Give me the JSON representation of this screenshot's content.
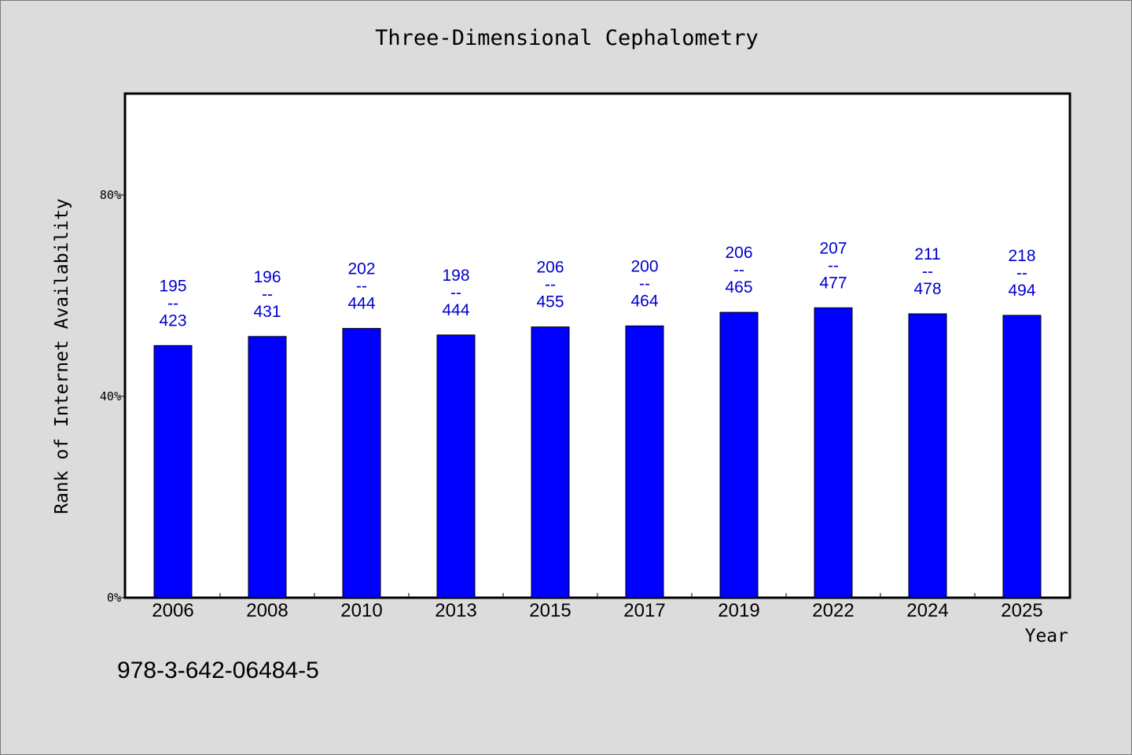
{
  "chart_data": {
    "type": "bar",
    "title": "Three-Dimensional Cephalometry",
    "xlabel": "Year",
    "ylabel": "Rank of Internet Availability",
    "ylim": [
      0,
      100
    ],
    "yticks": [
      0,
      40,
      80
    ],
    "ytick_labels": [
      "0%",
      "40%",
      "80%"
    ],
    "grid": false,
    "bar_color": "#0000ff",
    "label_color": "#0000cc",
    "categories": [
      "2006",
      "2008",
      "2010",
      "2013",
      "2015",
      "2017",
      "2019",
      "2022",
      "2024",
      "2025"
    ],
    "values": [
      50.1,
      51.9,
      53.5,
      52.2,
      53.8,
      54.0,
      56.7,
      57.6,
      56.4,
      56.1
    ],
    "data_labels": [
      {
        "top": "195",
        "sep": "--",
        "bottom": "423"
      },
      {
        "top": "196",
        "sep": "--",
        "bottom": "431"
      },
      {
        "top": "202",
        "sep": "--",
        "bottom": "444"
      },
      {
        "top": "198",
        "sep": "--",
        "bottom": "444"
      },
      {
        "top": "206",
        "sep": "--",
        "bottom": "455"
      },
      {
        "top": "200",
        "sep": "--",
        "bottom": "464"
      },
      {
        "top": "206",
        "sep": "--",
        "bottom": "465"
      },
      {
        "top": "207",
        "sep": "--",
        "bottom": "477"
      },
      {
        "top": "211",
        "sep": "--",
        "bottom": "478"
      },
      {
        "top": "218",
        "sep": "--",
        "bottom": "494"
      }
    ]
  },
  "footer": {
    "isbn": "978-3-642-06484-5"
  }
}
